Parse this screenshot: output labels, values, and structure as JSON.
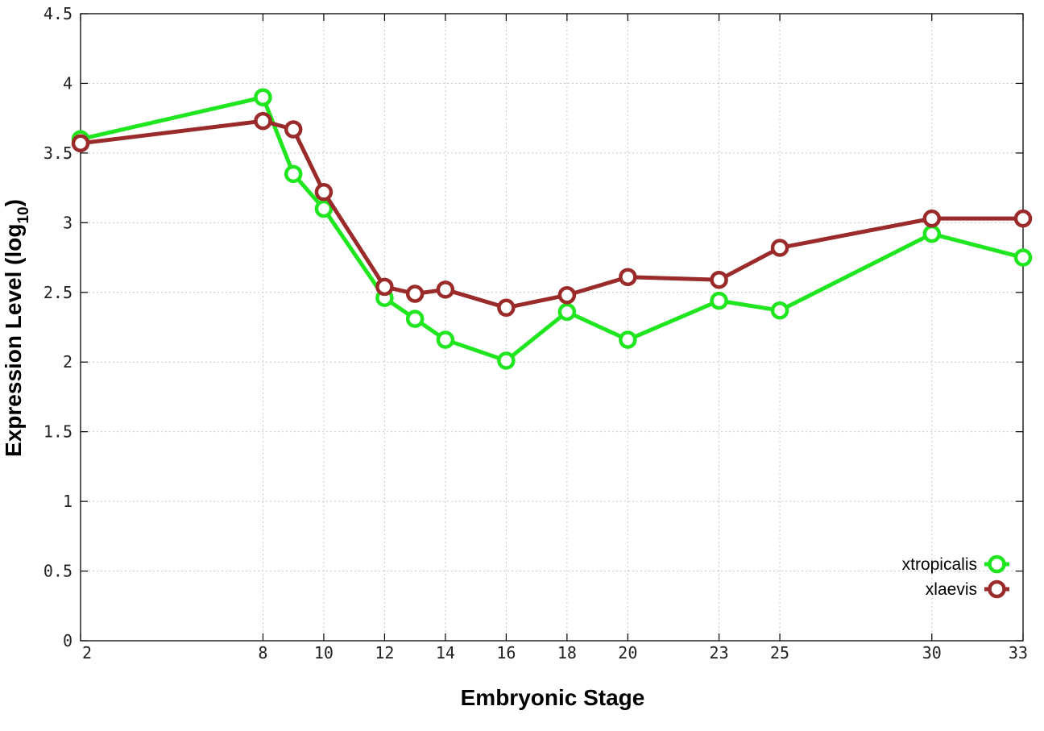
{
  "chart_data": {
    "type": "line",
    "xlabel": "Embryonic Stage",
    "ylabel_main": "Expression Level (log",
    "ylabel_sub": "10",
    "ylabel_close": ")",
    "x": [
      2,
      8,
      9,
      10,
      12,
      13,
      14,
      16,
      18,
      20,
      23,
      25,
      30,
      33
    ],
    "xlim": [
      2,
      33
    ],
    "ylim": [
      0,
      4.5
    ],
    "xticks": [
      2,
      8,
      10,
      12,
      14,
      16,
      18,
      20,
      23,
      25,
      30,
      33
    ],
    "xtick_labels": [
      "2",
      "8",
      "10",
      "12",
      "14",
      "16",
      "18",
      "20",
      "23",
      "25",
      "30",
      "33"
    ],
    "yticks": [
      0,
      0.5,
      1,
      1.5,
      2,
      2.5,
      3,
      3.5,
      4,
      4.5
    ],
    "ytick_labels": [
      "0",
      "0.5",
      "1",
      "1.5",
      "2",
      "2.5",
      "3",
      "3.5",
      "4",
      "4.5"
    ],
    "grid": true,
    "legend_position": "bottom-right",
    "series": [
      {
        "name": "xtropicalis",
        "color": "#1fe61f",
        "values": [
          3.6,
          3.9,
          3.35,
          3.1,
          2.46,
          2.31,
          2.16,
          2.01,
          2.36,
          2.16,
          2.44,
          2.37,
          2.92,
          2.75
        ]
      },
      {
        "name": "xlaevis",
        "color": "#9b2b2b",
        "values": [
          3.57,
          3.73,
          3.67,
          3.22,
          2.54,
          2.49,
          2.52,
          2.39,
          2.48,
          2.61,
          2.59,
          2.82,
          3.03,
          3.03
        ]
      }
    ]
  }
}
